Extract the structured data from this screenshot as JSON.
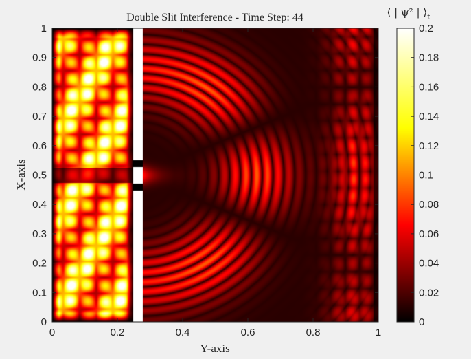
{
  "chart_data": {
    "type": "heatmap",
    "title": "Double Slit Interference - Time Step: 44",
    "xlabel": "Y-axis",
    "ylabel": "X-axis",
    "xlim": [
      0,
      1
    ],
    "ylim": [
      0,
      1
    ],
    "xticks": [
      "0",
      "0.2",
      "0.4",
      "0.6",
      "0.8",
      "1"
    ],
    "yticks": [
      "0",
      "0.1",
      "0.2",
      "0.3",
      "0.4",
      "0.5",
      "0.6",
      "0.7",
      "0.8",
      "0.9",
      "1"
    ],
    "colormap": "hot",
    "colorbar": {
      "label_html": "⟨ | ψ² | ⟩",
      "label_subscript": "t",
      "range": [
        0,
        0.2
      ],
      "ticks": [
        "0",
        "0.02",
        "0.04",
        "0.06",
        "0.08",
        "0.1",
        "0.12",
        "0.14",
        "0.16",
        "0.18",
        "0.2"
      ]
    },
    "barrier": {
      "y_position": 0.265,
      "slit_centers": [
        0.46,
        0.54
      ],
      "slit_half_width": 0.012
    }
  }
}
